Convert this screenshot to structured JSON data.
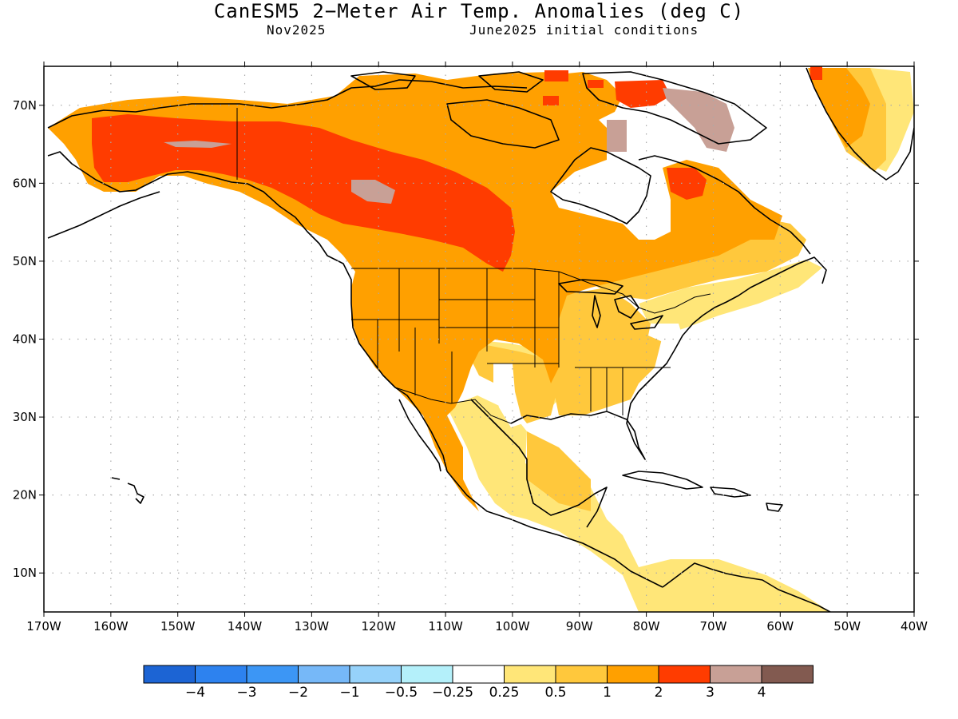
{
  "header": {
    "title": "CanESM5 2−Meter Air Temp. Anomalies (deg C)",
    "valid_month": "Nov2025",
    "initial_conditions": "June2025 initial conditions"
  },
  "map": {
    "lon_labels": [
      "170W",
      "160W",
      "150W",
      "140W",
      "130W",
      "120W",
      "110W",
      "100W",
      "90W",
      "80W",
      "70W",
      "60W",
      "50W",
      "40W"
    ],
    "lat_labels": [
      "70N",
      "60N",
      "50N",
      "40N",
      "30N",
      "20N",
      "10N"
    ],
    "lon_range": [
      -170,
      -40
    ],
    "lat_range": [
      5,
      75
    ]
  },
  "legend": {
    "colors": [
      "#1c64d4",
      "#2d82ef",
      "#3c96f5",
      "#76b8f8",
      "#96d2fa",
      "#b4f0fa",
      "#ffffff",
      "#ffe678",
      "#ffc83c",
      "#ffa000",
      "#ff3c00",
      "#c8a096",
      "#825a50"
    ],
    "labels": [
      "−4",
      "−3",
      "−2",
      "−1",
      "−0.5",
      "−0.25",
      "0.25",
      "0.5",
      "1",
      "2",
      "3",
      "4"
    ]
  },
  "colors": {
    "frame": "#000000",
    "grid": "#aaaaaa"
  }
}
